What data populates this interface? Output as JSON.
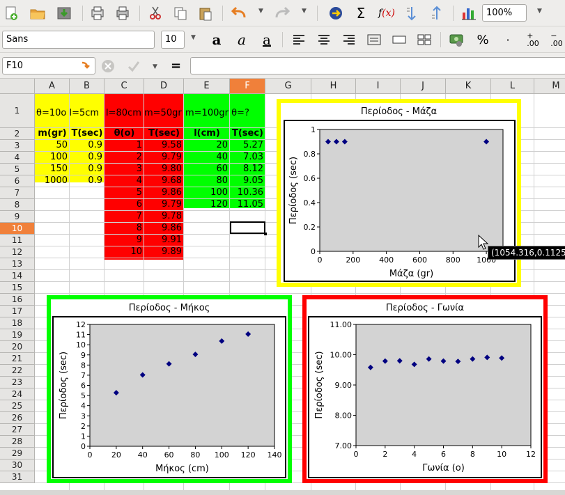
{
  "toolbar": {
    "zoom": "100%",
    "font_name": "Sans",
    "font_size": "10"
  },
  "formula_bar": {
    "cell_ref": "F10",
    "formula": ""
  },
  "sheet": {
    "columns": [
      "A",
      "B",
      "C",
      "D",
      "E",
      "F",
      "G",
      "H",
      "I",
      "J",
      "K",
      "L",
      "M"
    ],
    "selected_column": "F",
    "rows": [
      "1",
      "2",
      "3",
      "4",
      "5",
      "6",
      "7",
      "8",
      "9",
      "10",
      "11",
      "12",
      "13",
      "14",
      "15",
      "16",
      "17",
      "18",
      "19",
      "20",
      "21",
      "22",
      "23",
      "24",
      "25",
      "26",
      "27",
      "28",
      "29",
      "30",
      "31"
    ],
    "selected_row": "10",
    "colors": {
      "yellow": "#ffff00",
      "red": "#ff0000",
      "green": "#00ff00",
      "selected": "#f0803a"
    },
    "mass_block": {
      "header": "θ=10o l=5cm",
      "col_headers": [
        "m(gr)",
        "T(sec)"
      ],
      "rows": [
        [
          "50",
          "0.9"
        ],
        [
          "100",
          "0.9"
        ],
        [
          "150",
          "0.9"
        ],
        [
          "1000",
          "0.9"
        ]
      ]
    },
    "angle_block": {
      "header": "l=80cm m=50gr",
      "col_headers": [
        "θ(o)",
        "T(sec)"
      ],
      "rows": [
        [
          "1",
          "9.58"
        ],
        [
          "2",
          "9.79"
        ],
        [
          "3",
          "9.80"
        ],
        [
          "4",
          "9.68"
        ],
        [
          "5",
          "9.86"
        ],
        [
          "6",
          "9.79"
        ],
        [
          "7",
          "9.78"
        ],
        [
          "8",
          "9.86"
        ],
        [
          "9",
          "9.91"
        ],
        [
          "10",
          "9.89"
        ]
      ]
    },
    "length_block": {
      "header": "m=100gr θ=?",
      "col_headers": [
        "l(cm)",
        "T(sec)"
      ],
      "rows": [
        [
          "20",
          "5.27"
        ],
        [
          "40",
          "7.03"
        ],
        [
          "60",
          "8.12"
        ],
        [
          "80",
          "9.05"
        ],
        [
          "100",
          "10.36"
        ],
        [
          "120",
          "11.05"
        ]
      ]
    }
  },
  "charts": {
    "mass": {
      "title": "Περίοδος - Μάζα",
      "border_color": "#ffff00",
      "xlabel": "Μάζα (gr)",
      "ylabel": "Περίοδος (sec)",
      "xticks": [
        "0",
        "200",
        "400",
        "600",
        "800",
        "1000"
      ],
      "yticks": [
        "0",
        "0.2",
        "0.4",
        "0.6",
        "0.8",
        "1"
      ],
      "tooltip": "(1054.316,0.1125"
    },
    "length": {
      "title": "Περίοδος - Μήκος",
      "border_color": "#00ff00",
      "xlabel": "Μήκος (cm)",
      "ylabel": "Περίοδος (sec)",
      "xticks": [
        "0",
        "20",
        "40",
        "60",
        "80",
        "100",
        "120",
        "140"
      ],
      "yticks": [
        "0",
        "1",
        "2",
        "3",
        "4",
        "5",
        "6",
        "7",
        "8",
        "9",
        "10",
        "11",
        "12"
      ]
    },
    "angle": {
      "title": "Περίοδος - Γωνία",
      "border_color": "#ff0000",
      "xlabel": "Γωνία (o)",
      "ylabel": "Περίοδος (sec)",
      "xticks": [
        "0",
        "2",
        "4",
        "6",
        "8",
        "10",
        "12"
      ],
      "yticks": [
        "7.00",
        "8.00",
        "9.00",
        "10.00",
        "11.00"
      ]
    }
  },
  "chart_data": [
    {
      "type": "scatter",
      "title": "Περίοδος - Μάζα",
      "xlabel": "Μάζα (gr)",
      "ylabel": "Περίοδος (sec)",
      "x": [
        50,
        100,
        150,
        1000
      ],
      "y": [
        0.9,
        0.9,
        0.9,
        0.9
      ],
      "xlim": [
        0,
        1100
      ],
      "ylim": [
        0,
        1
      ],
      "grid": false,
      "plot_bg": "#d3d3d3",
      "marker_color": "#000080"
    },
    {
      "type": "scatter",
      "title": "Περίοδος - Μήκος",
      "xlabel": "Μήκος (cm)",
      "ylabel": "Περίοδος (sec)",
      "x": [
        20,
        40,
        60,
        80,
        100,
        120
      ],
      "y": [
        5.27,
        7.03,
        8.12,
        9.05,
        10.36,
        11.05
      ],
      "xlim": [
        0,
        140
      ],
      "ylim": [
        0,
        12
      ],
      "grid": false,
      "plot_bg": "#d3d3d3",
      "marker_color": "#000080"
    },
    {
      "type": "scatter",
      "title": "Περίοδος - Γωνία",
      "xlabel": "Γωνία (o)",
      "ylabel": "Περίοδος (sec)",
      "x": [
        1,
        2,
        3,
        4,
        5,
        6,
        7,
        8,
        9,
        10
      ],
      "y": [
        9.58,
        9.79,
        9.8,
        9.68,
        9.86,
        9.79,
        9.78,
        9.86,
        9.91,
        9.89
      ],
      "xlim": [
        0,
        12
      ],
      "ylim": [
        7,
        11
      ],
      "grid": false,
      "plot_bg": "#d3d3d3",
      "marker_color": "#000080"
    }
  ]
}
